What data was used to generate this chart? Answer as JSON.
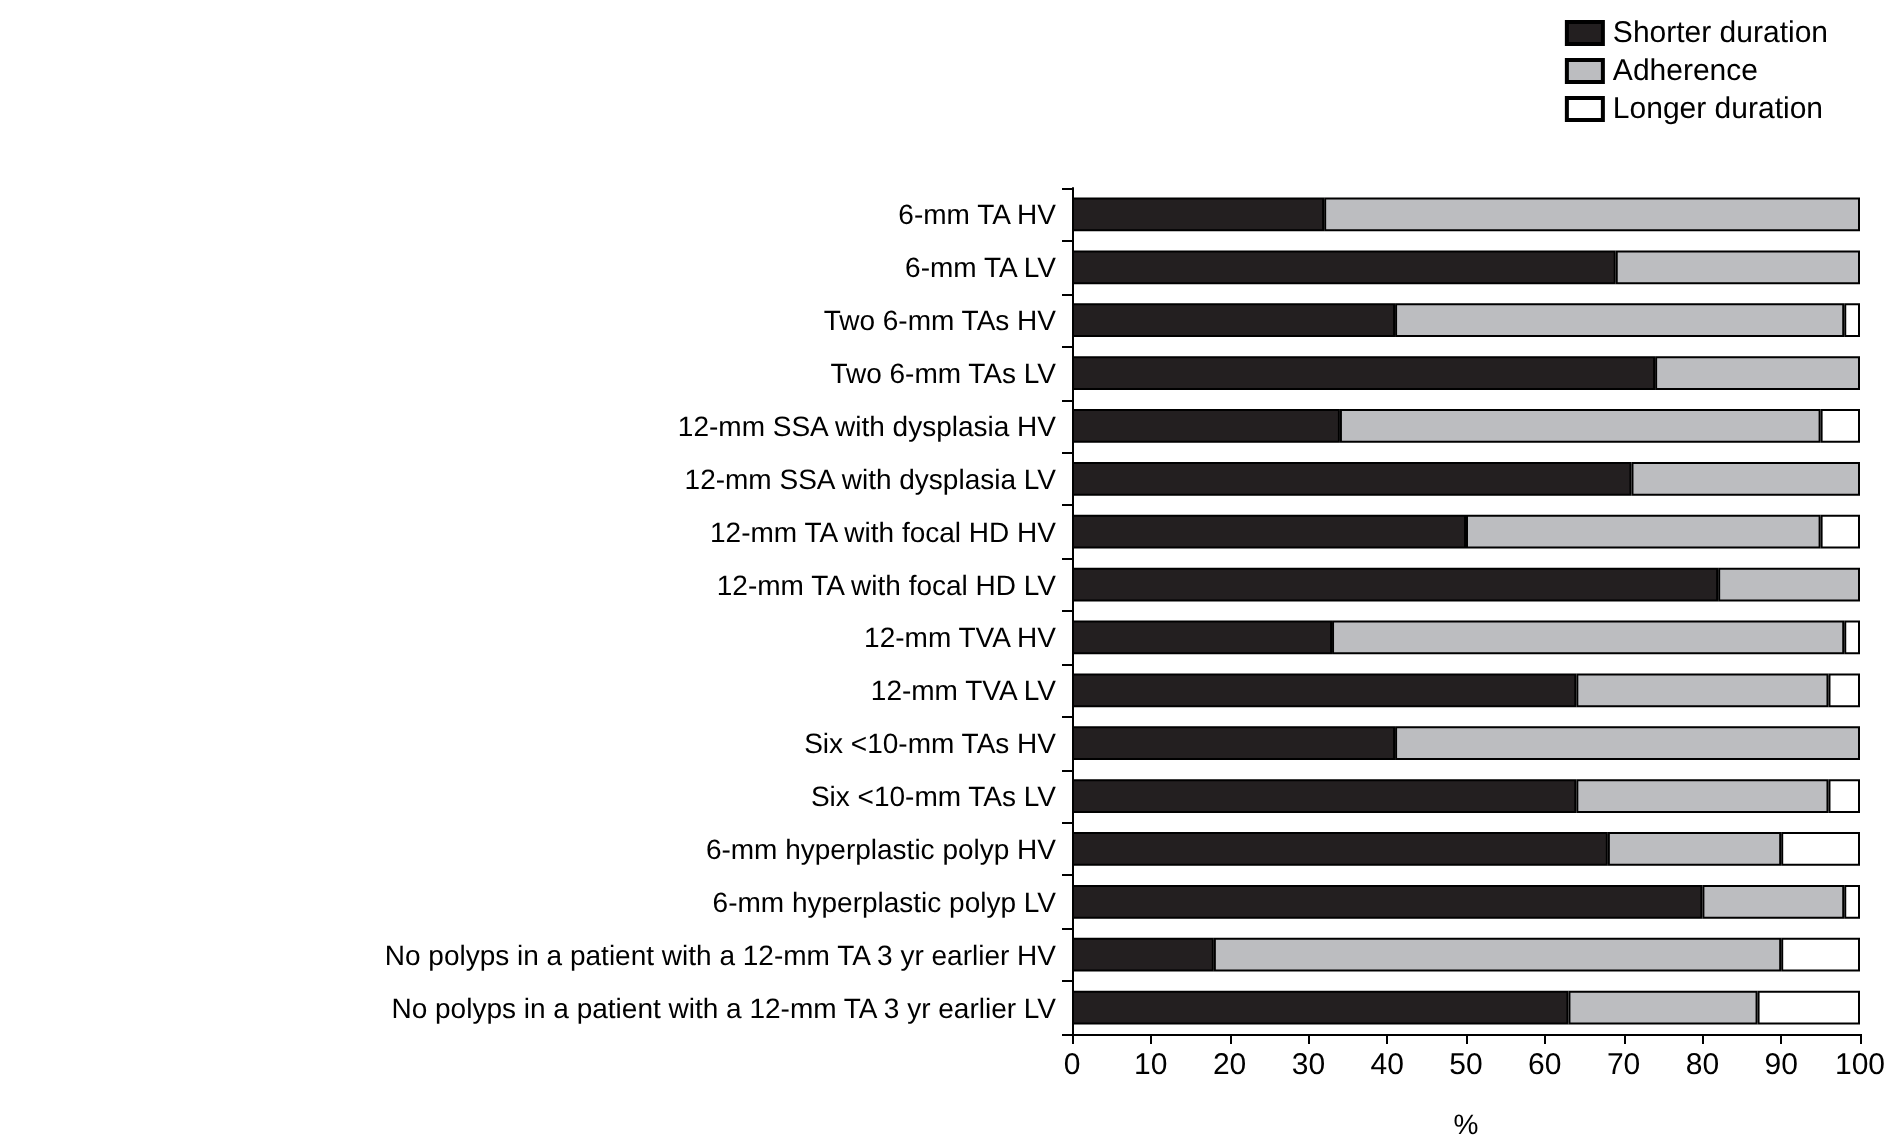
{
  "chart_data": {
    "type": "bar",
    "orientation": "horizontal",
    "stacked": true,
    "xlabel": "%",
    "legend": "top right",
    "grid": false,
    "categories": [
      "6-mm TA HV",
      "6-mm TA LV",
      "Two 6-mm TAs HV",
      "Two 6-mm TAs LV",
      "12-mm SSA with dysplasia HV",
      "12-mm SSA with dysplasia LV",
      "12-mm TA with focal HD HV",
      "12-mm TA with focal HD LV",
      "12-mm TVA HV",
      "12-mm TVA LV",
      "Six <10-mm TAs HV",
      "Six <10-mm TAs LV",
      "6-mm hyperplastic polyp HV",
      "6-mm hyperplastic polyp LV",
      "No polyps in a patient with a 12-mm TA 3 yr earlier HV",
      "No polyps in a patient with a 12-mm TA 3 yr earlier LV"
    ],
    "series": [
      {
        "name": "Shorter duration",
        "color": "#231f20",
        "values": [
          32,
          69,
          41,
          74,
          34,
          71,
          50,
          82,
          33,
          64,
          41,
          64,
          68,
          80,
          18,
          63
        ]
      },
      {
        "name": "Adherence",
        "color": "#bcbdc0",
        "values": [
          68,
          31,
          57,
          26,
          61,
          29,
          45,
          18,
          65,
          32,
          59,
          32,
          22,
          18,
          72,
          24
        ]
      },
      {
        "name": "Longer duration",
        "color": "#ffffff",
        "values": [
          0,
          0,
          2,
          0,
          5,
          0,
          5,
          0,
          2,
          4,
          0,
          4,
          10,
          2,
          10,
          13
        ]
      }
    ],
    "xlim": [
      0,
      100
    ],
    "xticks": [
      0,
      10,
      20,
      30,
      40,
      50,
      60,
      70,
      80,
      90,
      100
    ]
  }
}
